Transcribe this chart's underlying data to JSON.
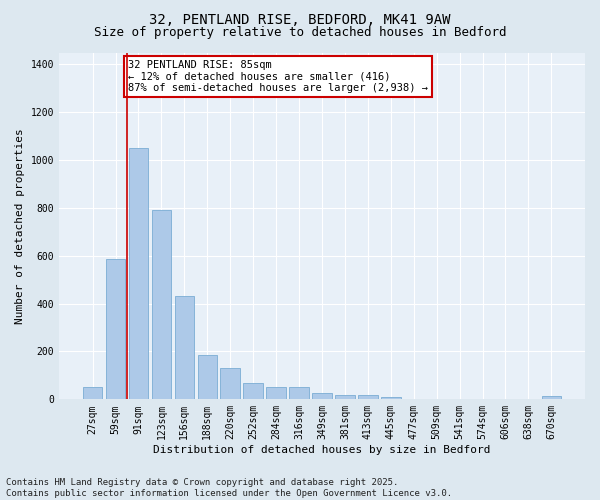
{
  "title1": "32, PENTLAND RISE, BEDFORD, MK41 9AW",
  "title2": "Size of property relative to detached houses in Bedford",
  "xlabel": "Distribution of detached houses by size in Bedford",
  "ylabel": "Number of detached properties",
  "categories": [
    "27sqm",
    "59sqm",
    "91sqm",
    "123sqm",
    "156sqm",
    "188sqm",
    "220sqm",
    "252sqm",
    "284sqm",
    "316sqm",
    "349sqm",
    "381sqm",
    "413sqm",
    "445sqm",
    "477sqm",
    "509sqm",
    "541sqm",
    "574sqm",
    "606sqm",
    "638sqm",
    "670sqm"
  ],
  "values": [
    50,
    585,
    1050,
    790,
    430,
    185,
    130,
    70,
    50,
    50,
    25,
    20,
    18,
    10,
    0,
    0,
    0,
    0,
    0,
    0,
    15
  ],
  "bar_color": "#adc9e8",
  "bar_edge_color": "#7aadd4",
  "vline_color": "#cc0000",
  "annotation_text": "32 PENTLAND RISE: 85sqm\n← 12% of detached houses are smaller (416)\n87% of semi-detached houses are larger (2,938) →",
  "annotation_box_color": "#ffffff",
  "annotation_box_edge": "#cc0000",
  "ylim": [
    0,
    1450
  ],
  "yticks": [
    0,
    200,
    400,
    600,
    800,
    1000,
    1200,
    1400
  ],
  "bg_color": "#dde8f0",
  "plot_bg_color": "#e8f0f8",
  "grid_color": "#ffffff",
  "footer": "Contains HM Land Registry data © Crown copyright and database right 2025.\nContains public sector information licensed under the Open Government Licence v3.0.",
  "title_fontsize": 10,
  "subtitle_fontsize": 9,
  "label_fontsize": 8,
  "tick_fontsize": 7,
  "annot_fontsize": 7.5,
  "footer_fontsize": 6.5
}
